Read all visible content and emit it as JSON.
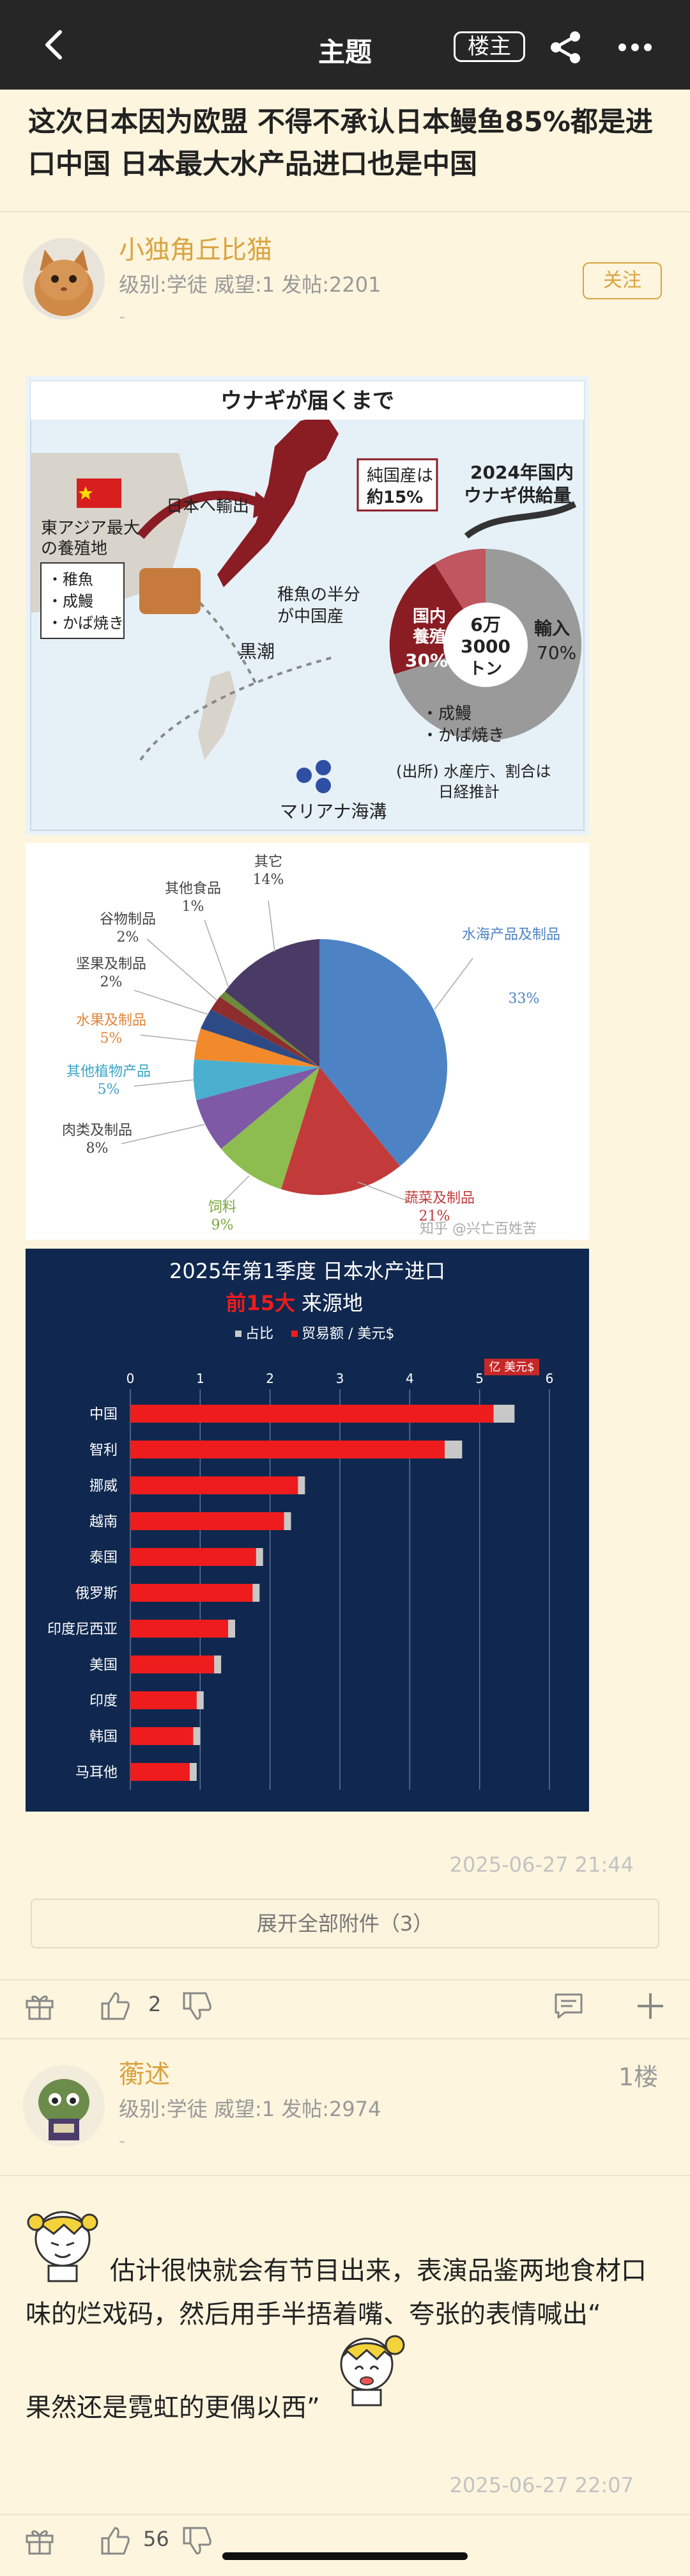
{
  "topbar": {
    "title": "主题",
    "owner_label": "楼主"
  },
  "post": {
    "title": "这次日本因为欧盟 不得不承认日本鳗鱼85%都是进口中国 日本最大水产品进口也是中国",
    "author": {
      "name": "小独角丘比猫",
      "meta": "级别:学徒  威望:1  发帖:2201",
      "dash": "-"
    },
    "follow_label": "关注",
    "date": "2025-06-27 21:44",
    "expand_label": "展开全部附件（3）",
    "like_count": "2"
  },
  "map_image": {
    "title": "ウナギが届くまで",
    "east_asia": "東アジア最大",
    "breeding": "の養殖地",
    "items": [
      "・稚魚",
      "・成鰻",
      "・かば焼き"
    ],
    "export": "日本へ輸出",
    "kuroshio": "黒潮",
    "fry_half": "稚魚の半分",
    "fry_half2": "が中国産",
    "pure_domestic": "純国産は",
    "pure_pct": "約15%",
    "supply_title1": "2024年国内",
    "supply_title2": "ウナギ供給量",
    "domestic": "国内",
    "farmed": "養殖",
    "domestic_pct": "30%",
    "center1": "6万",
    "center2": "3000",
    "center3": "トン",
    "import": "輸入",
    "import_pct": "70%",
    "import_items": [
      "・成鰻",
      "・かば焼き"
    ],
    "source1": "(出所) 水産庁、割合は",
    "source2": "日経推計",
    "mariana": "マリアナ海溝"
  },
  "pie_chart": {
    "labels": [
      {
        "name": "其它",
        "pct": "14%"
      },
      {
        "name": "其他食品",
        "pct": "1%"
      },
      {
        "name": "谷物制品",
        "pct": "2%"
      },
      {
        "name": "坚果及制品",
        "pct": "2%"
      },
      {
        "name": "水果及制品",
        "pct": "5%"
      },
      {
        "name": "其他植物产品",
        "pct": "5%"
      },
      {
        "name": "肉类及制品",
        "pct": "8%"
      },
      {
        "name": "饲料",
        "pct": "9%"
      },
      {
        "name": "蔬菜及制品",
        "pct": "21%"
      },
      {
        "name": "水海产品及制品",
        "pct": "33%"
      }
    ],
    "watermark": "知乎 @兴亡百姓苦"
  },
  "chart_data": {
    "type": "bar",
    "title": "2025年第1季度 日本水产进口",
    "subtitle_red": "前15大",
    "subtitle_rest": "来源地",
    "legend": [
      "占比",
      "贸易额 / 美元$"
    ],
    "unit": "亿 美元$",
    "xlim": [
      0,
      6
    ],
    "xticks": [
      "0",
      "1",
      "2",
      "3",
      "4",
      "5",
      "6"
    ],
    "categories": [
      "中国",
      "智利",
      "挪威",
      "越南",
      "泰国",
      "俄罗斯",
      "印度尼西亚",
      "美国",
      "印度",
      "韩国",
      "马耳他"
    ],
    "series": [
      {
        "name": "贸易额 / 美元$",
        "values": [
          5.2,
          4.5,
          2.4,
          2.2,
          1.8,
          1.75,
          1.4,
          1.2,
          0.95,
          0.9,
          0.85
        ]
      },
      {
        "name": "占比",
        "values": [
          5.5,
          4.75,
          2.5,
          2.3,
          1.9,
          1.85,
          1.5,
          1.3,
          1.05,
          1.0,
          0.95
        ]
      }
    ]
  },
  "reply": {
    "author": {
      "name": "蘅述",
      "meta": "级别:学徒  威望:1  发帖:2974",
      "dash": "-"
    },
    "floor": "1楼",
    "text1": "估计很快就会有节目出来，表演品鉴两地食材口味的烂戏码，然后用手半捂着嘴、夸张的表情喊出“",
    "text2": "果然还是霓虹的更偶以西”",
    "date": "2025-06-27 22:07",
    "like_count": "56"
  },
  "colors": {
    "accent": "#d9a441",
    "topbar": "#262626",
    "background": "#fdf5de",
    "bar_red": "#ee1c1c",
    "chart_bg": "#10284f"
  }
}
